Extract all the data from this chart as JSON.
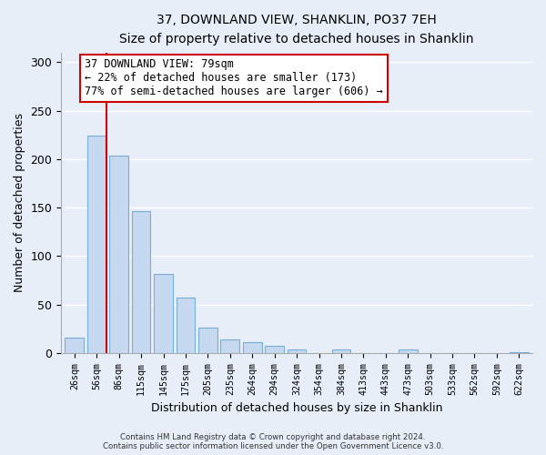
{
  "title": "37, DOWNLAND VIEW, SHANKLIN, PO37 7EH",
  "subtitle": "Size of property relative to detached houses in Shanklin",
  "xlabel": "Distribution of detached houses by size in Shanklin",
  "ylabel": "Number of detached properties",
  "bar_labels": [
    "26sqm",
    "56sqm",
    "86sqm",
    "115sqm",
    "145sqm",
    "175sqm",
    "205sqm",
    "235sqm",
    "264sqm",
    "294sqm",
    "324sqm",
    "354sqm",
    "384sqm",
    "413sqm",
    "443sqm",
    "473sqm",
    "503sqm",
    "533sqm",
    "562sqm",
    "592sqm",
    "622sqm"
  ],
  "bar_values": [
    16,
    224,
    204,
    146,
    82,
    57,
    26,
    14,
    11,
    7,
    4,
    0,
    4,
    0,
    0,
    4,
    0,
    0,
    0,
    0,
    1
  ],
  "bar_color": "#c5d8f0",
  "bar_edge_color": "#7aadd4",
  "vline_color": "#cc0000",
  "annotation_title": "37 DOWNLAND VIEW: 79sqm",
  "annotation_line1": "← 22% of detached houses are smaller (173)",
  "annotation_line2": "77% of semi-detached houses are larger (606) →",
  "annotation_box_facecolor": "#ffffff",
  "annotation_box_edgecolor": "#cc0000",
  "footer_line1": "Contains HM Land Registry data © Crown copyright and database right 2024.",
  "footer_line2": "Contains public sector information licensed under the Open Government Licence v3.0.",
  "ylim": [
    0,
    310
  ],
  "background_color": "#e8eef8",
  "plot_background": "#e8eef8",
  "grid_color": "#ffffff",
  "yticks": [
    0,
    50,
    100,
    150,
    200,
    250,
    300
  ]
}
